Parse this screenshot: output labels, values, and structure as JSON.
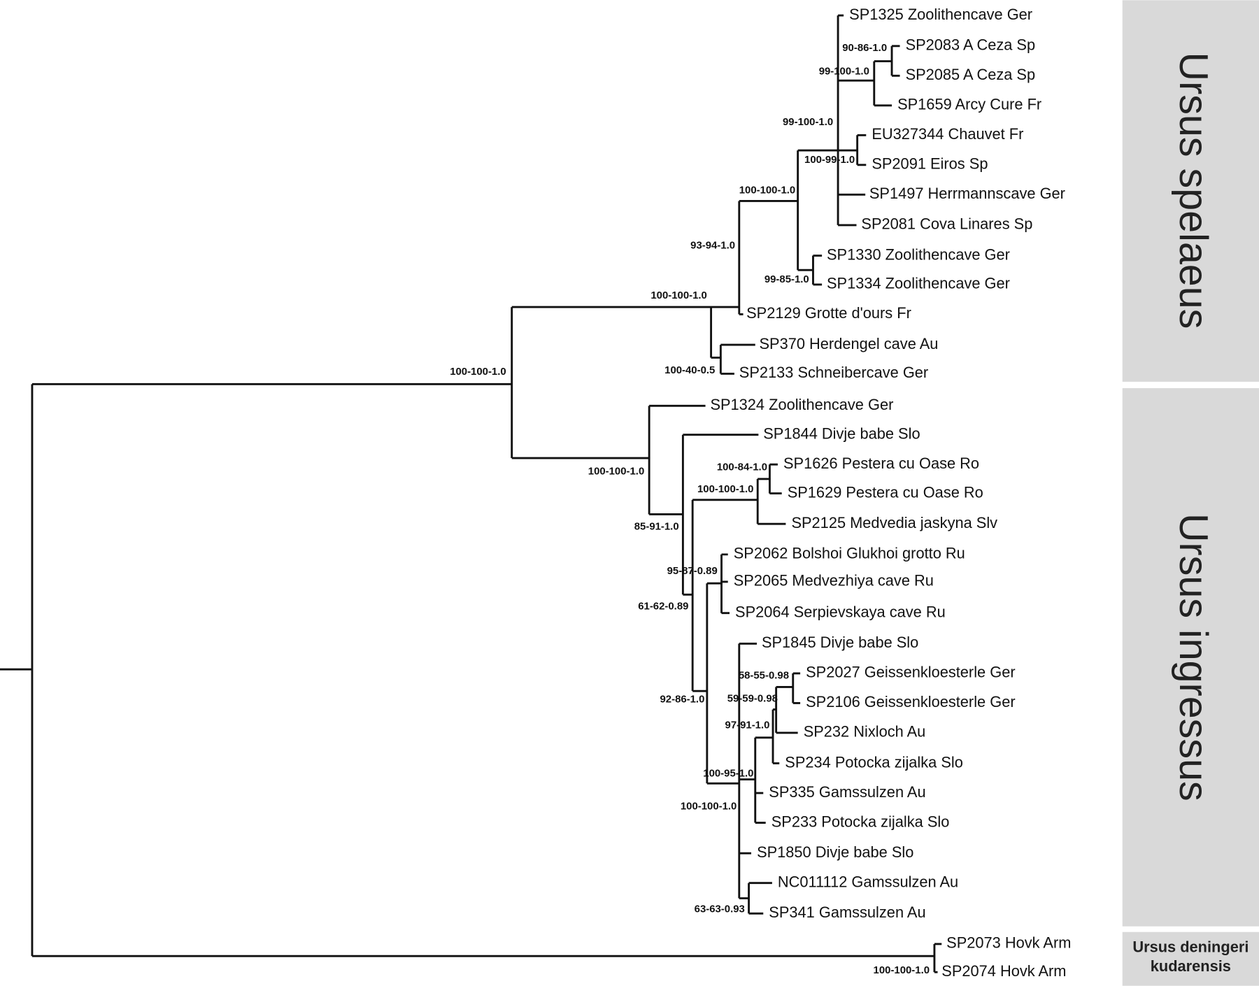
{
  "tree": {
    "leaves": [
      "SP1325 Zoolithencave Ger",
      "SP2083 A Ceza Sp",
      "SP2085 A Ceza Sp",
      "SP1659 Arcy Cure Fr",
      "EU327344 Chauvet Fr",
      "SP2091 Eiros Sp",
      "SP1497 Herrmannscave Ger",
      "SP2081 Cova Linares Sp",
      "SP1330 Zoolithencave Ger",
      "SP1334 Zoolithencave Ger",
      "SP2129 Grotte d'ours Fr",
      "SP370 Herdengel cave Au",
      "SP2133 Schneibercave Ger",
      "SP1324 Zoolithencave Ger",
      "SP1844 Divje babe Slo",
      "SP1626 Pestera cu Oase Ro",
      "SP1629 Pestera cu Oase Ro",
      "SP2125 Medvedia jaskyna Slv",
      "SP2062 Bolshoi Glukhoi grotto Ru",
      "SP2065 Medvezhiya cave Ru",
      "SP2064 Serpievskaya cave Ru",
      "SP1845 Divje babe Slo",
      "SP2027 Geissenkloesterle Ger",
      "SP2106 Geissenkloesterle Ger",
      "SP232 Nixloch Au",
      "SP234 Potocka zijalka Slo",
      "SP335 Gamssulzen Au",
      "SP233 Potocka zijalka Slo",
      "SP1850 Divje babe Slo",
      "NC011112 Gamssulzen Au",
      "SP341 Gamssulzen Au",
      "SP2073 Hovk Arm",
      "SP2074 Hovk Arm"
    ],
    "supports": [
      "90-86-1.0",
      "99-100-1.0",
      "99-100-1.0",
      "100-99-1.0",
      "100-100-1.0",
      "93-94-1.0",
      "99-85-1.0",
      "100-100-1.0",
      "100-40-0.5",
      "100-100-1.0",
      "100-100-1.0",
      "100-84-1.0",
      "100-100-1.0",
      "85-91-1.0",
      "95-87-0.89",
      "61-62-0.89",
      "92-86-1.0",
      "58-55-0.98",
      "59-59-0.98",
      "97-91-1.0",
      "100-95-1.0",
      "100-100-1.0",
      "63-63-0.93",
      "100-100-1.0"
    ]
  },
  "clades": [
    [
      "Ursus spelaeus"
    ],
    [
      "Ursus ingressus"
    ],
    [
      "Ursus deningeri",
      "kudarensis"
    ]
  ]
}
